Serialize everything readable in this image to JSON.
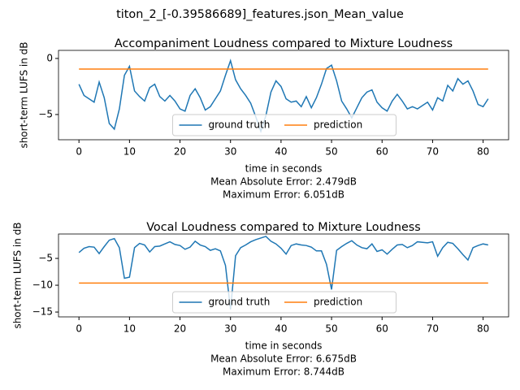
{
  "title": "titon_2_[-0.39586689]_features.json_Mean_value",
  "chart_data": [
    {
      "type": "line",
      "title": "Accompaniment Loudness compared to Mixture Loudness",
      "xlabel": "time in seconds",
      "ylabel": "short-term LUFS in dB",
      "annotations": [
        "Mean Absolute Error: 2.479dB",
        "Maximum Error: 6.051dB"
      ],
      "x": [
        0,
        1,
        2,
        3,
        4,
        5,
        6,
        7,
        8,
        9,
        10,
        11,
        12,
        13,
        14,
        15,
        16,
        17,
        18,
        19,
        20,
        21,
        22,
        23,
        24,
        25,
        26,
        27,
        28,
        29,
        30,
        31,
        32,
        33,
        34,
        35,
        36,
        37,
        38,
        39,
        40,
        41,
        42,
        43,
        44,
        45,
        46,
        47,
        48,
        49,
        50,
        51,
        52,
        53,
        54,
        55,
        56,
        57,
        58,
        59,
        60,
        61,
        62,
        63,
        64,
        65,
        66,
        67,
        68,
        69,
        70,
        71,
        72,
        73,
        74,
        75,
        76,
        77,
        78,
        79,
        80,
        81
      ],
      "series": [
        {
          "name": "ground truth",
          "color": "#1f77b4",
          "values": [
            -2.3,
            -3.3,
            -3.6,
            -3.9,
            -2.1,
            -3.5,
            -5.8,
            -6.3,
            -4.5,
            -1.5,
            -0.7,
            -2.9,
            -3.4,
            -3.8,
            -2.6,
            -2.3,
            -3.4,
            -3.8,
            -3.3,
            -3.8,
            -4.5,
            -4.7,
            -3.3,
            -2.7,
            -3.5,
            -4.6,
            -4.3,
            -3.6,
            -2.9,
            -1.5,
            -0.2,
            -1.9,
            -2.7,
            -3.3,
            -4.0,
            -5.2,
            -6.5,
            -5.1,
            -3.0,
            -2.0,
            -2.5,
            -3.6,
            -3.9,
            -3.8,
            -4.3,
            -3.4,
            -4.4,
            -3.5,
            -2.3,
            -0.9,
            -0.6,
            -2.0,
            -3.8,
            -4.5,
            -5.3,
            -4.4,
            -3.5,
            -3.0,
            -2.8,
            -3.9,
            -4.4,
            -4.7,
            -3.8,
            -3.2,
            -3.8,
            -4.5,
            -4.3,
            -4.5,
            -4.2,
            -3.9,
            -4.6,
            -3.5,
            -3.8,
            -2.4,
            -2.9,
            -1.8,
            -2.3,
            -2.0,
            -2.9,
            -4.1,
            -4.3,
            -3.6
          ]
        },
        {
          "name": "prediction",
          "color": "#ff7f0e",
          "x": [
            0,
            81
          ],
          "values": [
            -0.95,
            -0.95
          ]
        }
      ],
      "xlim": [
        -4.05,
        85.05
      ],
      "xticks": [
        0,
        10,
        20,
        30,
        40,
        50,
        60,
        70,
        80
      ],
      "ylim": [
        -7.25,
        0.72
      ],
      "yticks": [
        {
          "value": -5,
          "label": "−5"
        },
        0
      ],
      "legend": "lower center",
      "legend_columns": 2
    },
    {
      "type": "line",
      "title": "Vocal Loudness compared to Mixture Loudness",
      "xlabel": "time in seconds",
      "ylabel": "short-term LUFS in dB",
      "annotations": [
        "Mean Absolute Error: 6.675dB",
        "Maximum Error: 8.744dB"
      ],
      "x": [
        0,
        1,
        2,
        3,
        4,
        5,
        6,
        7,
        8,
        9,
        10,
        11,
        12,
        13,
        14,
        15,
        16,
        17,
        18,
        19,
        20,
        21,
        22,
        23,
        24,
        25,
        26,
        27,
        28,
        29,
        30,
        31,
        32,
        33,
        34,
        35,
        36,
        37,
        38,
        39,
        40,
        41,
        42,
        43,
        44,
        45,
        46,
        47,
        48,
        49,
        50,
        51,
        52,
        53,
        54,
        55,
        56,
        57,
        58,
        59,
        60,
        61,
        62,
        63,
        64,
        65,
        66,
        67,
        68,
        69,
        70,
        71,
        72,
        73,
        74,
        75,
        76,
        77,
        78,
        79,
        80,
        81
      ],
      "series": [
        {
          "name": "ground truth",
          "color": "#1f77b4",
          "values": [
            -3.9,
            -3.1,
            -2.8,
            -2.9,
            -4.1,
            -2.8,
            -1.6,
            -1.3,
            -3.0,
            -8.7,
            -8.5,
            -3.0,
            -2.2,
            -2.5,
            -3.8,
            -2.8,
            -2.7,
            -2.3,
            -1.9,
            -2.4,
            -2.6,
            -3.3,
            -2.9,
            -1.8,
            -2.5,
            -2.8,
            -3.5,
            -3.2,
            -3.6,
            -6.3,
            -14.5,
            -4.5,
            -3.0,
            -2.5,
            -1.9,
            -1.5,
            -1.2,
            -0.9,
            -1.8,
            -2.3,
            -3.1,
            -4.2,
            -2.6,
            -2.3,
            -2.5,
            -2.6,
            -2.9,
            -3.6,
            -3.6,
            -6.1,
            -10.8,
            -3.5,
            -2.8,
            -2.2,
            -1.7,
            -2.5,
            -3.0,
            -3.2,
            -2.3,
            -3.7,
            -3.4,
            -4.2,
            -3.3,
            -2.5,
            -2.4,
            -3.0,
            -2.6,
            -1.9,
            -2.0,
            -2.1,
            -1.9,
            -4.6,
            -3.0,
            -2.0,
            -2.2,
            -3.2,
            -4.3,
            -5.3,
            -3.0,
            -2.6,
            -2.3,
            -2.5
          ]
        },
        {
          "name": "prediction",
          "color": "#ff7f0e",
          "x": [
            0,
            81
          ],
          "values": [
            -9.6,
            -9.6
          ]
        }
      ],
      "xlim": [
        -4.05,
        85.05
      ],
      "xticks": [
        0,
        10,
        20,
        30,
        40,
        50,
        60,
        70,
        80
      ],
      "ylim": [
        -15.9,
        -0.45
      ],
      "yticks": [
        {
          "value": -15,
          "label": "−15"
        },
        {
          "value": -10,
          "label": "−10"
        },
        {
          "value": -5,
          "label": "−5"
        }
      ],
      "legend": "lower center",
      "legend_columns": 2
    }
  ]
}
